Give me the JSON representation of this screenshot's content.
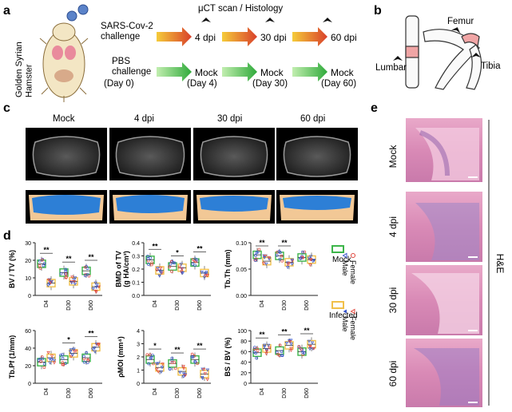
{
  "panel_letters": {
    "a": "a",
    "b": "b",
    "c": "c",
    "d": "d",
    "e": "e"
  },
  "panel_a": {
    "species": "Golden Syrian\nHamster",
    "scan_label": "μCT scan / Histology",
    "virus_challenge": "SARS-Cov-2\nchallenge",
    "pbs_challenge": "PBS\nchallenge",
    "day0": "(Day 0)",
    "infected_timepoints": [
      "4 dpi",
      "30 dpi",
      "60 dpi"
    ],
    "mock_timepoints": [
      "Mock",
      "Mock",
      "Mock"
    ],
    "mock_days": [
      "(Day 4)",
      "(Day 30)",
      "(Day 60)"
    ],
    "colors": {
      "virus_arrow": "#d9402b",
      "virus_arrow_start": "#f5cc3a",
      "mock_arrow": "#2faa3a",
      "mock_arrow_start": "#c2eeb0"
    }
  },
  "panel_b": {
    "femur": "Femur",
    "lumbar": "Lumbar",
    "tibia": "Tibia"
  },
  "panel_c": {
    "columns": [
      "Mock",
      "4 dpi",
      "30 dpi",
      "60 dpi"
    ]
  },
  "panel_d": {
    "legend": {
      "mock_title": "Mock",
      "infected_title": "Infected",
      "female": "Female",
      "male": "Male",
      "colors": {
        "mock_box": "#3db54a",
        "infected_box": "#f1c04a",
        "female": "#e0443a",
        "male": "#3452c8"
      }
    }
  },
  "panel_e": {
    "rows": [
      "Mock",
      "4 dpi",
      "30 dpi",
      "60 dpi"
    ],
    "side_label": "H&E"
  },
  "chart_data": [
    {
      "type": "box",
      "title": "",
      "ylabel": "BV / TV (%)",
      "categories": [
        "D4",
        "D30",
        "D60"
      ],
      "ylim": [
        0,
        30
      ],
      "yticks": [
        "0",
        "10",
        "20",
        "30"
      ],
      "series": [
        {
          "name": "Mock",
          "values": [
            18,
            13,
            14
          ]
        },
        {
          "name": "Infected",
          "values": [
            7,
            8,
            5
          ]
        }
      ],
      "significance": [
        "**",
        "**",
        "**"
      ]
    },
    {
      "type": "box",
      "title": "",
      "ylabel": "BMD of TV\n(g HA/cm³)",
      "categories": [
        "D4",
        "D30",
        "D60"
      ],
      "ylim": [
        0,
        0.4
      ],
      "yticks": [
        "0.0",
        "0.1",
        "0.2",
        "0.3",
        "0.4"
      ],
      "series": [
        {
          "name": "Mock",
          "values": [
            0.27,
            0.22,
            0.25
          ]
        },
        {
          "name": "Infected",
          "values": [
            0.19,
            0.21,
            0.17
          ]
        }
      ],
      "significance": [
        "**",
        "*",
        "**"
      ]
    },
    {
      "type": "box",
      "title": "",
      "ylabel": "Tb.Th (mm)",
      "categories": [
        "D4",
        "D30",
        "D60"
      ],
      "ylim": [
        0,
        0.1
      ],
      "yticks": [
        "0.00",
        "0.05",
        "0.10"
      ],
      "series": [
        {
          "name": "Mock",
          "values": [
            0.077,
            0.075,
            0.072
          ]
        },
        {
          "name": "Infected",
          "values": [
            0.065,
            0.063,
            0.068
          ]
        }
      ],
      "significance": [
        "**",
        "**",
        ""
      ]
    },
    {
      "type": "box",
      "title": "",
      "ylabel": "Tb.Pf (1/mm)",
      "categories": [
        "D4",
        "D30",
        "D60"
      ],
      "ylim": [
        0,
        60
      ],
      "yticks": [
        "0",
        "20",
        "40",
        "60"
      ],
      "series": [
        {
          "name": "Mock",
          "values": [
            24,
            27,
            29
          ]
        },
        {
          "name": "Infected",
          "values": [
            29,
            34,
            41
          ]
        }
      ],
      "significance": [
        "",
        "*",
        "**"
      ]
    },
    {
      "type": "box",
      "title": "",
      "ylabel": "ρMOI (mm⁴)",
      "categories": [
        "D4",
        "D30",
        "D60"
      ],
      "ylim": [
        0,
        4
      ],
      "yticks": [
        "0",
        "1",
        "2",
        "3",
        "4"
      ],
      "series": [
        {
          "name": "Mock",
          "values": [
            1.8,
            1.5,
            1.8
          ]
        },
        {
          "name": "Infected",
          "values": [
            1.2,
            0.9,
            0.7
          ]
        }
      ],
      "significance": [
        "*",
        "**",
        "**"
      ]
    },
    {
      "type": "box",
      "title": "",
      "ylabel": "BS / BV (%)",
      "categories": [
        "D4",
        "D30",
        "D60"
      ],
      "ylim": [
        0,
        100
      ],
      "yticks": [
        "0",
        "20",
        "40",
        "60",
        "80",
        "100"
      ],
      "series": [
        {
          "name": "Mock",
          "values": [
            58,
            62,
            60
          ]
        },
        {
          "name": "Infected",
          "values": [
            66,
            72,
            74
          ]
        }
      ],
      "significance": [
        "**",
        "**",
        "**"
      ]
    }
  ]
}
